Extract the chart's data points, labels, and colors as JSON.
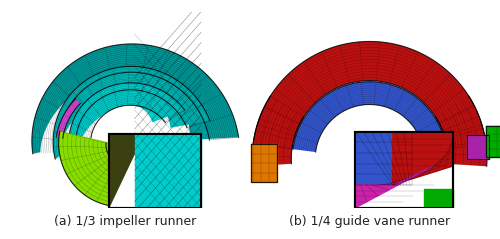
{
  "figsize": [
    5.0,
    2.39
  ],
  "dpi": 100,
  "background_color": "#ffffff",
  "caption_a": "(a) 1/3 impeller runner",
  "caption_b": "(b) 1/4 guide vane runner",
  "caption_fontsize": 9,
  "caption_color": "#222222"
}
